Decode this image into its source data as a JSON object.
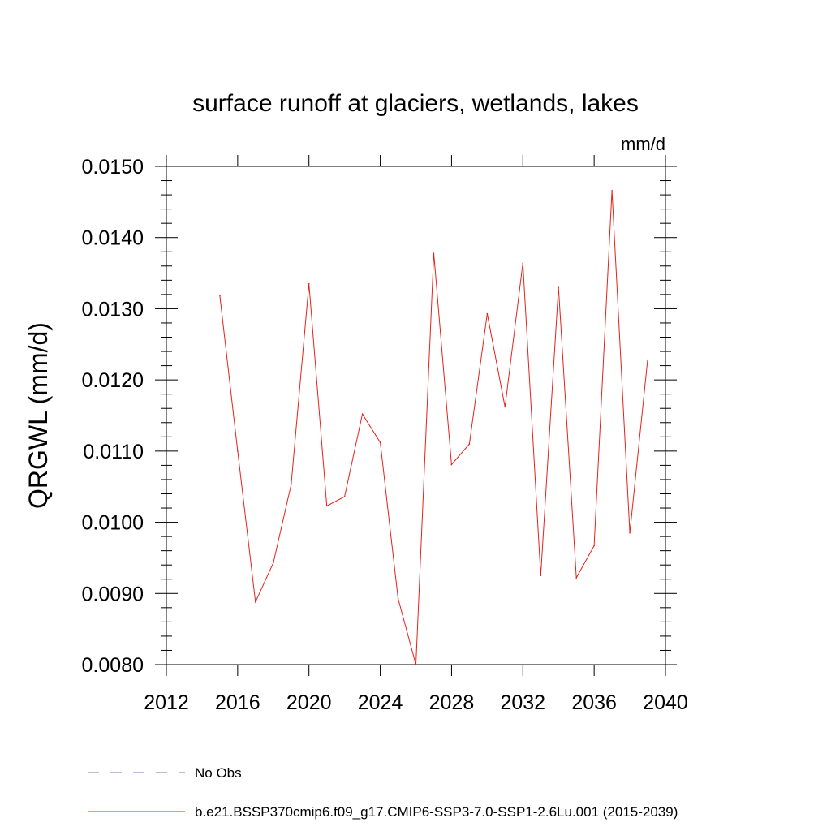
{
  "chart_data": {
    "type": "line",
    "title": "surface runoff at glaciers, wetlands, lakes",
    "units_label": "mm/d",
    "ylabel": "QRGWL  (mm/d)",
    "xlabel": "",
    "xlim": [
      2012,
      2040
    ],
    "ylim": [
      0.008,
      0.015
    ],
    "xticks": [
      "2012",
      "2016",
      "2020",
      "2024",
      "2028",
      "2032",
      "2036",
      "2040"
    ],
    "yticks": [
      "0.0080",
      "0.0090",
      "0.0100",
      "0.0110",
      "0.0120",
      "0.0130",
      "0.0140",
      "0.0150"
    ],
    "grid": false,
    "legend_position": "bottom",
    "legend": [
      {
        "label": "No Obs",
        "color": "#7b6fc4",
        "style": "dashed"
      },
      {
        "label": "b.e21.BSSP370cmip6.f09_g17.CMIP6-SSP3-7.0-SSP1-2.6Lu.001 (2015-2039)",
        "color": "#e8201a",
        "style": "solid"
      }
    ],
    "series": [
      {
        "name": "b.e21.BSSP370cmip6.f09_g17.CMIP6-SSP3-7.0-SSP1-2.6Lu.001 (2015-2039)",
        "color": "#e8201a",
        "x": [
          2015,
          2016,
          2017,
          2018,
          2019,
          2020,
          2021,
          2022,
          2023,
          2024,
          2025,
          2026,
          2027,
          2028,
          2029,
          2030,
          2031,
          2032,
          2033,
          2034,
          2035,
          2036,
          2037,
          2038,
          2039
        ],
        "values": [
          0.01318,
          0.011,
          0.00888,
          0.00943,
          0.01053,
          0.01335,
          0.01023,
          0.01036,
          0.01152,
          0.01112,
          0.00893,
          0.008,
          0.01378,
          0.01081,
          0.0111,
          0.01293,
          0.01162,
          0.01364,
          0.00925,
          0.0133,
          0.00922,
          0.00967,
          0.01466,
          0.00985,
          0.01228
        ]
      }
    ]
  }
}
